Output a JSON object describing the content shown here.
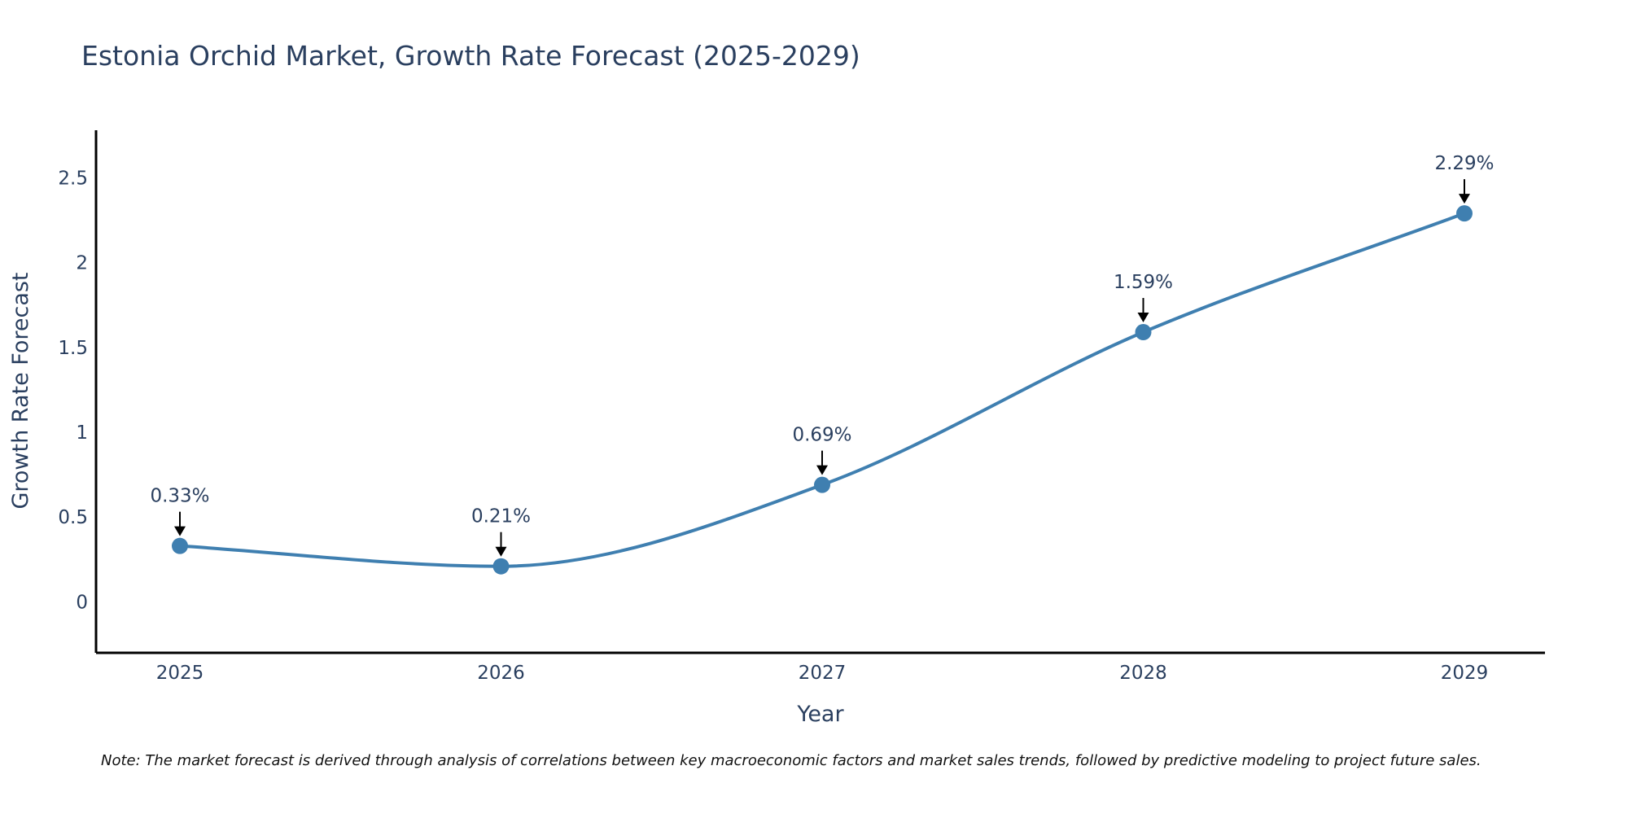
{
  "chart_data": {
    "type": "line",
    "title": "Estonia Orchid Market, Growth Rate Forecast (2025-2029)",
    "xlabel": "Year",
    "ylabel": "Growth Rate Forecast",
    "x": [
      "2025",
      "2026",
      "2027",
      "2028",
      "2029"
    ],
    "series": [
      {
        "name": "Growth Rate Forecast",
        "values": [
          0.33,
          0.21,
          0.69,
          1.59,
          2.29
        ]
      }
    ],
    "annotations": [
      "0.33%",
      "0.21%",
      "0.69%",
      "1.59%",
      "2.29%"
    ],
    "y_ticks": [
      "0",
      "0.5",
      "1",
      "1.5",
      "2",
      "2.5"
    ],
    "ylim": [
      -0.3,
      2.78
    ],
    "grid": false,
    "line_color": "#3f7fb0",
    "marker_color": "#3f7fb0",
    "note": "Note: The market forecast is derived through analysis of correlations between key macroeconomic factors and market sales trends, followed by predictive modeling to project future sales."
  }
}
